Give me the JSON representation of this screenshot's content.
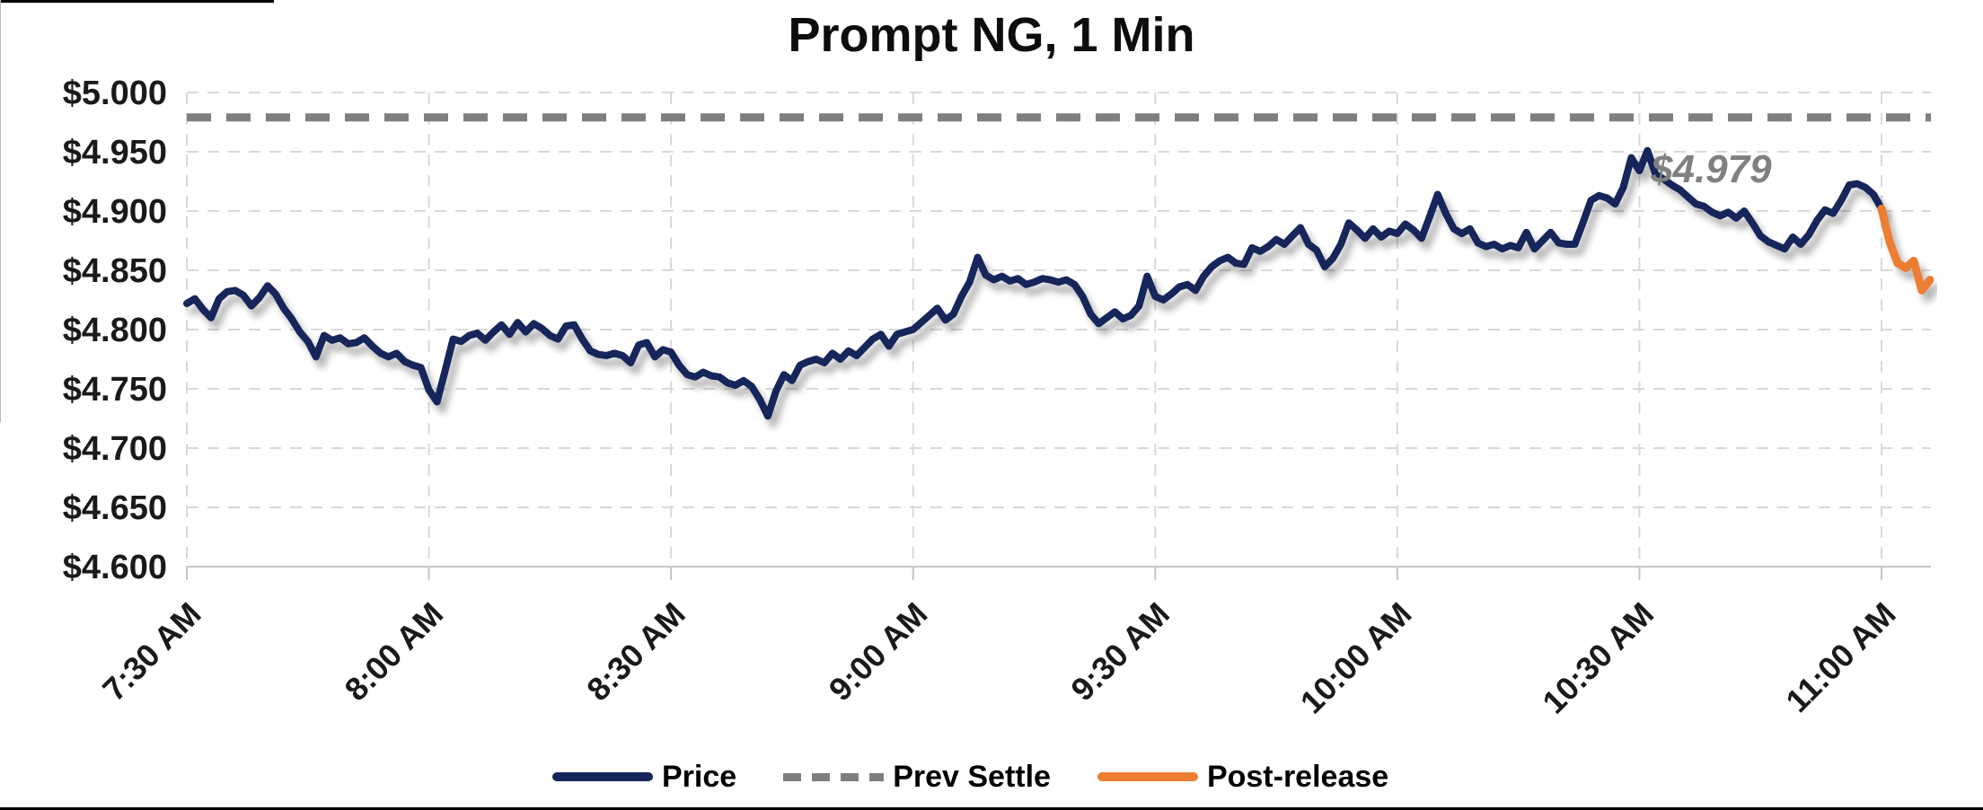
{
  "chart_data": {
    "type": "line",
    "title": "Prompt NG, 1 Min",
    "annotation": {
      "label": "$4.979",
      "color": "#808080"
    },
    "x_axis": {
      "labels": [
        "7:30 AM",
        "8:00 AM",
        "8:30 AM",
        "9:00 AM",
        "9:30 AM",
        "10:00 AM",
        "10:30 AM",
        "11:00 AM"
      ],
      "minutes_between_labels": 30,
      "minutes_per_point": 1
    },
    "y_axis": {
      "tick_labels": [
        "$5.000",
        "$4.950",
        "$4.900",
        "$4.850",
        "$4.800",
        "$4.750",
        "$4.700",
        "$4.650",
        "$4.600"
      ],
      "min": 4.6,
      "max": 5.0,
      "step": 0.05
    },
    "grid": {
      "on": true,
      "color": "#d9d9d9"
    },
    "legend_position": "bottom",
    "series": [
      {
        "name": "Price",
        "type": "line",
        "color": "#14265A",
        "start_minute": 0,
        "values": [
          4.822,
          4.826,
          4.817,
          4.81,
          4.826,
          4.832,
          4.833,
          4.829,
          4.82,
          4.827,
          4.837,
          4.83,
          4.818,
          4.809,
          4.798,
          4.79,
          4.777,
          4.795,
          4.791,
          4.793,
          4.788,
          4.789,
          4.793,
          4.786,
          4.78,
          4.777,
          4.78,
          4.773,
          4.77,
          4.768,
          4.749,
          4.739,
          4.765,
          4.792,
          4.79,
          4.795,
          4.797,
          4.791,
          4.798,
          4.804,
          4.796,
          4.806,
          4.798,
          4.805,
          4.801,
          4.795,
          4.792,
          4.803,
          4.804,
          4.792,
          4.782,
          4.779,
          4.778,
          4.78,
          4.778,
          4.772,
          4.787,
          4.789,
          4.777,
          4.783,
          4.781,
          4.77,
          4.762,
          4.76,
          4.764,
          4.761,
          4.76,
          4.755,
          4.753,
          4.757,
          4.752,
          4.741,
          4.727,
          4.748,
          4.762,
          4.757,
          4.77,
          4.773,
          4.775,
          4.772,
          4.78,
          4.775,
          4.782,
          4.778,
          4.785,
          4.792,
          4.796,
          4.786,
          4.796,
          4.798,
          4.8,
          4.806,
          4.812,
          4.818,
          4.808,
          4.813,
          4.828,
          4.84,
          4.861,
          4.846,
          4.842,
          4.845,
          4.841,
          4.843,
          4.838,
          4.84,
          4.843,
          4.842,
          4.84,
          4.842,
          4.838,
          4.828,
          4.813,
          4.805,
          4.81,
          4.815,
          4.809,
          4.812,
          4.82,
          4.845,
          4.828,
          4.825,
          4.83,
          4.836,
          4.838,
          4.833,
          4.845,
          4.853,
          4.858,
          4.861,
          4.856,
          4.855,
          4.869,
          4.866,
          4.87,
          4.876,
          4.872,
          4.879,
          4.886,
          4.872,
          4.867,
          4.853,
          4.86,
          4.872,
          4.89,
          4.884,
          4.877,
          4.885,
          4.878,
          4.883,
          4.881,
          4.889,
          4.884,
          4.877,
          4.895,
          4.914,
          4.898,
          4.885,
          4.881,
          4.885,
          4.873,
          4.87,
          4.872,
          4.868,
          4.871,
          4.869,
          4.882,
          4.868,
          4.875,
          4.882,
          4.873,
          4.872,
          4.872,
          4.89,
          4.909,
          4.913,
          4.911,
          4.906,
          4.92,
          4.945,
          4.934,
          4.951,
          4.931,
          4.927,
          4.922,
          4.918,
          4.912,
          4.906,
          4.904,
          4.899,
          4.896,
          4.899,
          4.894,
          4.9,
          4.89,
          4.879,
          4.874,
          4.871,
          4.868,
          4.878,
          4.872,
          4.88,
          4.892,
          4.901,
          4.898,
          4.909,
          4.922,
          4.923,
          4.92,
          4.914,
          4.902
        ]
      },
      {
        "name": "Prev Settle",
        "type": "level",
        "color": "#7F7F7F",
        "value": 4.979
      },
      {
        "name": "Post-release",
        "type": "line",
        "color": "#ED7D31",
        "start_minute": 210,
        "values": [
          4.902,
          4.874,
          4.856,
          4.852,
          4.858,
          4.833,
          4.842
        ]
      }
    ]
  }
}
